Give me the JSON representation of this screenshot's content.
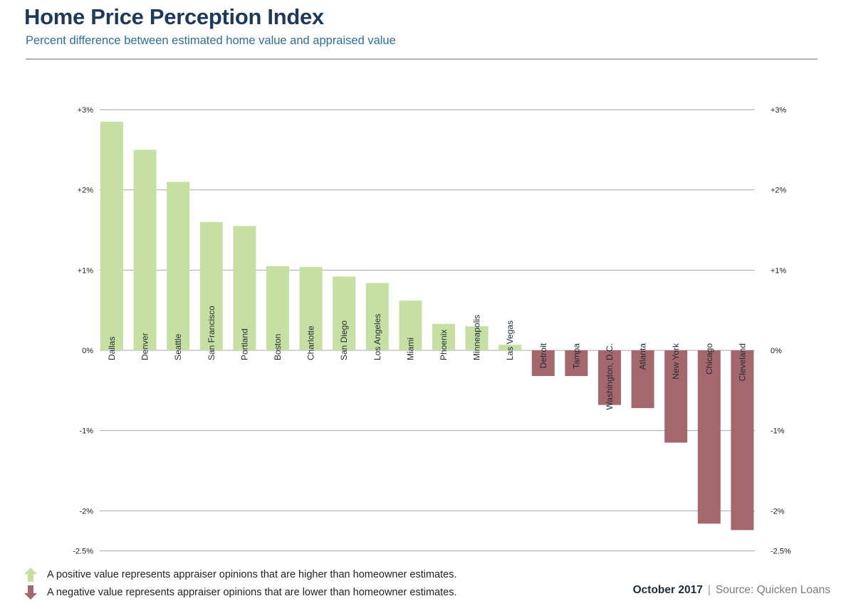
{
  "header": {
    "title": "Home Price Perception Index",
    "subtitle": "Percent difference between estimated home value and appraised value"
  },
  "legend": {
    "positive": "A positive value represents appraiser opinions that are higher than homeowner estimates.",
    "negative": "A negative value represents appraiser opinions that are lower than homeowner estimates."
  },
  "footer": {
    "date": "October 2017",
    "separator": "|",
    "source": "Source: Quicken Loans"
  },
  "colors": {
    "positive": "#c6e0a4",
    "negative": "#a4686c",
    "grid": "#a8a8a8"
  },
  "chart_data": {
    "type": "bar",
    "title": "Home Price Perception Index",
    "subtitle": "Percent difference between estimated home value and appraised value",
    "categories": [
      "Dallas",
      "Denver",
      "Seattle",
      "San Francisco",
      "Portland",
      "Boston",
      "Charlotte",
      "San Diego",
      "Los Angeles",
      "Miami",
      "Phoenix",
      "Minneapolis",
      "Las Vegas",
      "Detroit",
      "Tampa",
      "Washington, D.C.",
      "Atlanta",
      "New York",
      "Chicago",
      "Cleveland"
    ],
    "values": [
      2.85,
      2.5,
      2.1,
      1.6,
      1.55,
      1.05,
      1.04,
      0.92,
      0.84,
      0.62,
      0.33,
      0.3,
      0.07,
      -0.32,
      -0.32,
      -0.68,
      -0.72,
      -1.15,
      -2.16,
      -2.24
    ],
    "ylim": [
      -2.5,
      3
    ],
    "yticks": [
      3,
      2,
      1,
      0,
      -1,
      -2,
      -2.5
    ],
    "ytick_labels": [
      "+3%",
      "+2%",
      "+1%",
      "0%",
      "-1%",
      "-2%",
      "-2.5%"
    ],
    "grid": true,
    "axes": "left-and-right"
  }
}
